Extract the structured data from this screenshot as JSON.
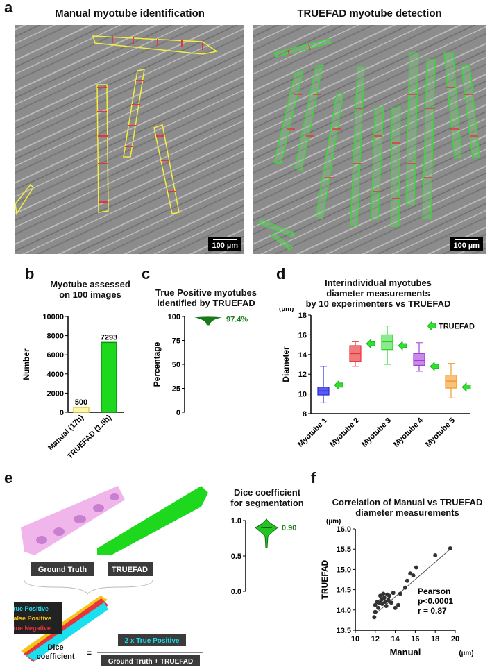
{
  "panel_a": {
    "label": "a",
    "left_title": "Manual myotube identification",
    "right_title": "TRUEFAD myotube detection",
    "scale_bar_left": "100 µm",
    "scale_bar_right": "100 µm"
  },
  "panel_b": {
    "label": "b"
  },
  "panel_c": {
    "label": "c"
  },
  "panel_d": {
    "label": "d",
    "legend_label": "TRUEFAD"
  },
  "panel_e": {
    "label": "e",
    "ground_truth_label": "Ground Truth",
    "truefad_label": "TRUEFAD",
    "legend_true_positive": "True Positive",
    "legend_false_positive": "False Positive",
    "legend_true_negative": "True Negative",
    "dice_label_line1": "Dice",
    "dice_label_line2": "coefficient",
    "equals": "=",
    "numerator": "2 x True Positive",
    "denominator": "Ground Truth + TRUEFAD"
  },
  "panel_f": {
    "label": "f"
  },
  "colors": {
    "manual_yellow": "#f5ef3c",
    "truefad_green": "#1ed81e",
    "dark_green": "#1a7a1a",
    "blue": "#2a2ad8",
    "red": "#e8343a",
    "purple": "#a33fd8",
    "orange": "#f59a2a",
    "cyan": "#19dfee",
    "pink": "#f0b6ec"
  },
  "chart_data": [
    {
      "id": "b",
      "type": "bar",
      "title": "Myotube assessed\non 100 images",
      "xlabel": "",
      "ylabel": "Number",
      "categories": [
        "Manual (17h)",
        "TRUEFAD (1.5h)"
      ],
      "values": [
        500,
        7293
      ],
      "value_labels": [
        "500",
        "7293"
      ],
      "ylim": [
        0,
        10000
      ],
      "yticks": [
        "0",
        "2000",
        "4000",
        "6000",
        "8000",
        "10000"
      ]
    },
    {
      "id": "c",
      "type": "violin",
      "title": "True Positive myotubes\nidentified by TRUEFAD",
      "ylabel": "Percentage",
      "value": 97.4,
      "value_label": "97.4%",
      "ylim": [
        0,
        100
      ],
      "yticks": [
        "0",
        "25",
        "50",
        "75",
        "100"
      ]
    },
    {
      "id": "d",
      "type": "box",
      "title": "Interindividual myotubes\ndiameter measurements\nby 10 experimenters vs TRUEFAD",
      "ylabel": "Diameter",
      "unit": "(µm)",
      "ylim": [
        8,
        18
      ],
      "yticks": [
        "8",
        "10",
        "12",
        "14",
        "16",
        "18"
      ],
      "categories": [
        "Myotube 1",
        "Myotube 2",
        "Myotube 3",
        "Myotube 4",
        "Myotube 5"
      ],
      "boxes": [
        {
          "min": 9.1,
          "q1": 9.9,
          "median": 10.3,
          "q3": 10.7,
          "max": 12.8,
          "truefad": 10.9
        },
        {
          "min": 12.8,
          "q1": 13.3,
          "median": 14.1,
          "q3": 14.9,
          "max": 15.3,
          "truefad": 15.1
        },
        {
          "min": 13.0,
          "q1": 14.5,
          "median": 15.3,
          "q3": 16.0,
          "max": 16.9,
          "truefad": 14.9
        },
        {
          "min": 12.3,
          "q1": 12.9,
          "median": 13.4,
          "q3": 14.1,
          "max": 15.2,
          "truefad": 12.8
        },
        {
          "min": 9.6,
          "q1": 10.6,
          "median": 11.3,
          "q3": 11.9,
          "max": 13.1,
          "truefad": 10.7
        }
      ]
    },
    {
      "id": "e",
      "type": "violin",
      "title": "Dice coefficient\nfor segmentation",
      "value": 0.9,
      "value_label": "0.90",
      "ylim": [
        0,
        1
      ],
      "yticks": [
        "0.0",
        "0.5",
        "1.0"
      ]
    },
    {
      "id": "f",
      "type": "scatter",
      "title": "Correlation of Manual vs TRUEFAD\ndiameter measurements",
      "xlabel": "Manual",
      "ylabel": "TRUEFAD",
      "xunit": "(µm)",
      "yunit": "(µm)",
      "xlim": [
        10,
        20
      ],
      "ylim": [
        13.5,
        16.0
      ],
      "xticks": [
        "10",
        "12",
        "14",
        "16",
        "18",
        "20"
      ],
      "yticks": [
        "13.5",
        "14.0",
        "14.5",
        "15.0",
        "15.5",
        "16.0"
      ],
      "annotation": [
        "Pearson",
        "p<0.0001",
        "r = 0.87"
      ],
      "fit_line": {
        "x": [
          12,
          19.6
        ],
        "y": [
          13.9,
          15.52
        ]
      },
      "points": [
        [
          11.9,
          13.82
        ],
        [
          12.0,
          13.95
        ],
        [
          12.0,
          14.12
        ],
        [
          12.2,
          14.2
        ],
        [
          12.3,
          14.05
        ],
        [
          12.4,
          14.18
        ],
        [
          12.5,
          14.35
        ],
        [
          12.6,
          14.25
        ],
        [
          12.7,
          14.15
        ],
        [
          12.8,
          14.4
        ],
        [
          12.9,
          14.3
        ],
        [
          13.0,
          14.2
        ],
        [
          13.1,
          14.1
        ],
        [
          13.2,
          14.38
        ],
        [
          13.3,
          14.25
        ],
        [
          13.4,
          14.35
        ],
        [
          13.6,
          14.18
        ],
        [
          13.8,
          14.42
        ],
        [
          14.0,
          14.05
        ],
        [
          14.3,
          14.12
        ],
        [
          14.5,
          14.4
        ],
        [
          15.0,
          14.55
        ],
        [
          15.2,
          14.72
        ],
        [
          15.5,
          14.9
        ],
        [
          15.8,
          14.85
        ],
        [
          16.1,
          15.05
        ],
        [
          18.0,
          15.35
        ],
        [
          19.5,
          15.52
        ]
      ]
    }
  ]
}
